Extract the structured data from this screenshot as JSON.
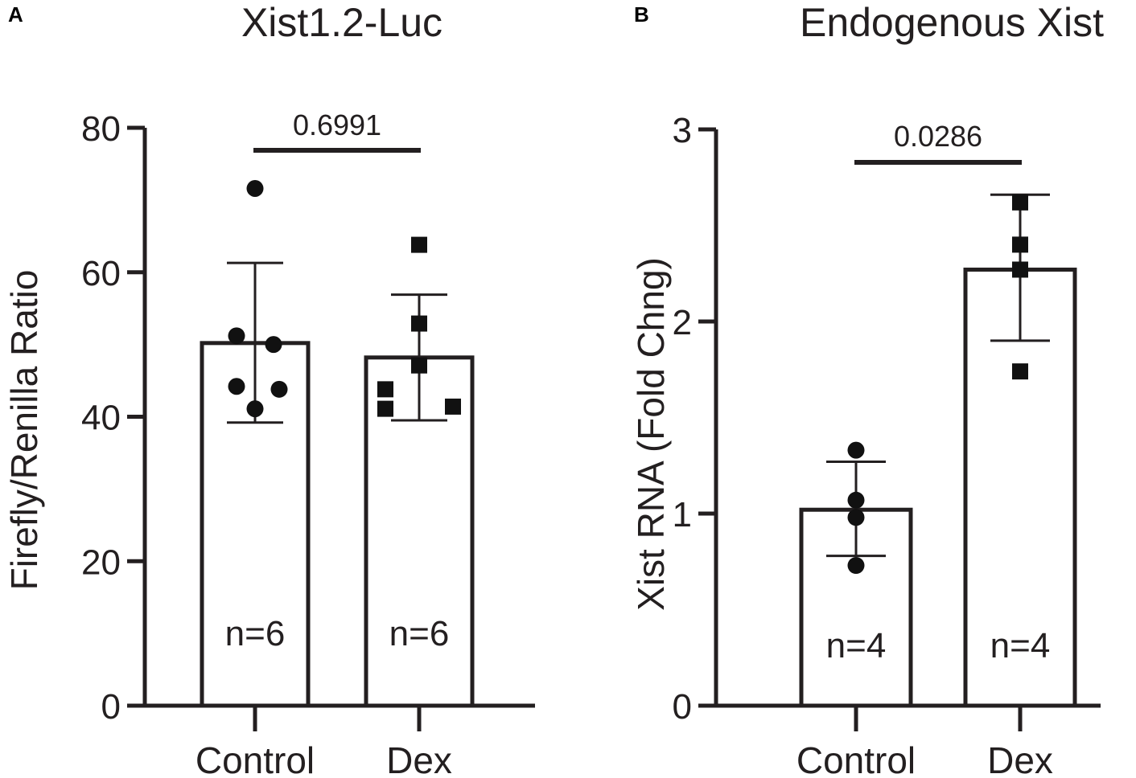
{
  "chart_data": [
    {
      "panel": "A",
      "type": "bar",
      "title": "Xist1.2-Luc",
      "ylabel": "Firefly/Renilla Ratio",
      "xlabel": "",
      "ylim": [
        0,
        80
      ],
      "yticks": [
        0,
        20,
        40,
        60,
        80
      ],
      "categories": [
        "Control",
        "Dex"
      ],
      "values": [
        50.2,
        48.2
      ],
      "error": [
        [
          39.2,
          61.3
        ],
        [
          39.5,
          56.9
        ]
      ],
      "points": [
        [
          71.6,
          51.2,
          50,
          44.2,
          43.8,
          41.1
        ],
        [
          63.8,
          52.9,
          47.1,
          43.8,
          41.1,
          41.4
        ]
      ],
      "markers": [
        "circle",
        "square"
      ],
      "n_labels": [
        "n=6",
        "n=6"
      ],
      "comparison": {
        "pvalue": "0.6991"
      }
    },
    {
      "panel": "B",
      "type": "bar",
      "title": "Endogenous Xist",
      "ylabel": "Xist RNA (Fold Chng)",
      "xlabel": "",
      "ylim": [
        0,
        3
      ],
      "yticks": [
        0,
        1,
        2,
        3
      ],
      "categories": [
        "Control",
        "Dex"
      ],
      "values": [
        1.02,
        2.27
      ],
      "error": [
        [
          0.78,
          1.27
        ],
        [
          1.9,
          2.66
        ]
      ],
      "points": [
        [
          1.33,
          1.07,
          0.98,
          0.73
        ],
        [
          2.62,
          2.4,
          2.27,
          1.74
        ]
      ],
      "markers": [
        "circle",
        "square"
      ],
      "n_labels": [
        "n=4",
        "n=4"
      ],
      "comparison": {
        "pvalue": "0.0286"
      }
    }
  ]
}
